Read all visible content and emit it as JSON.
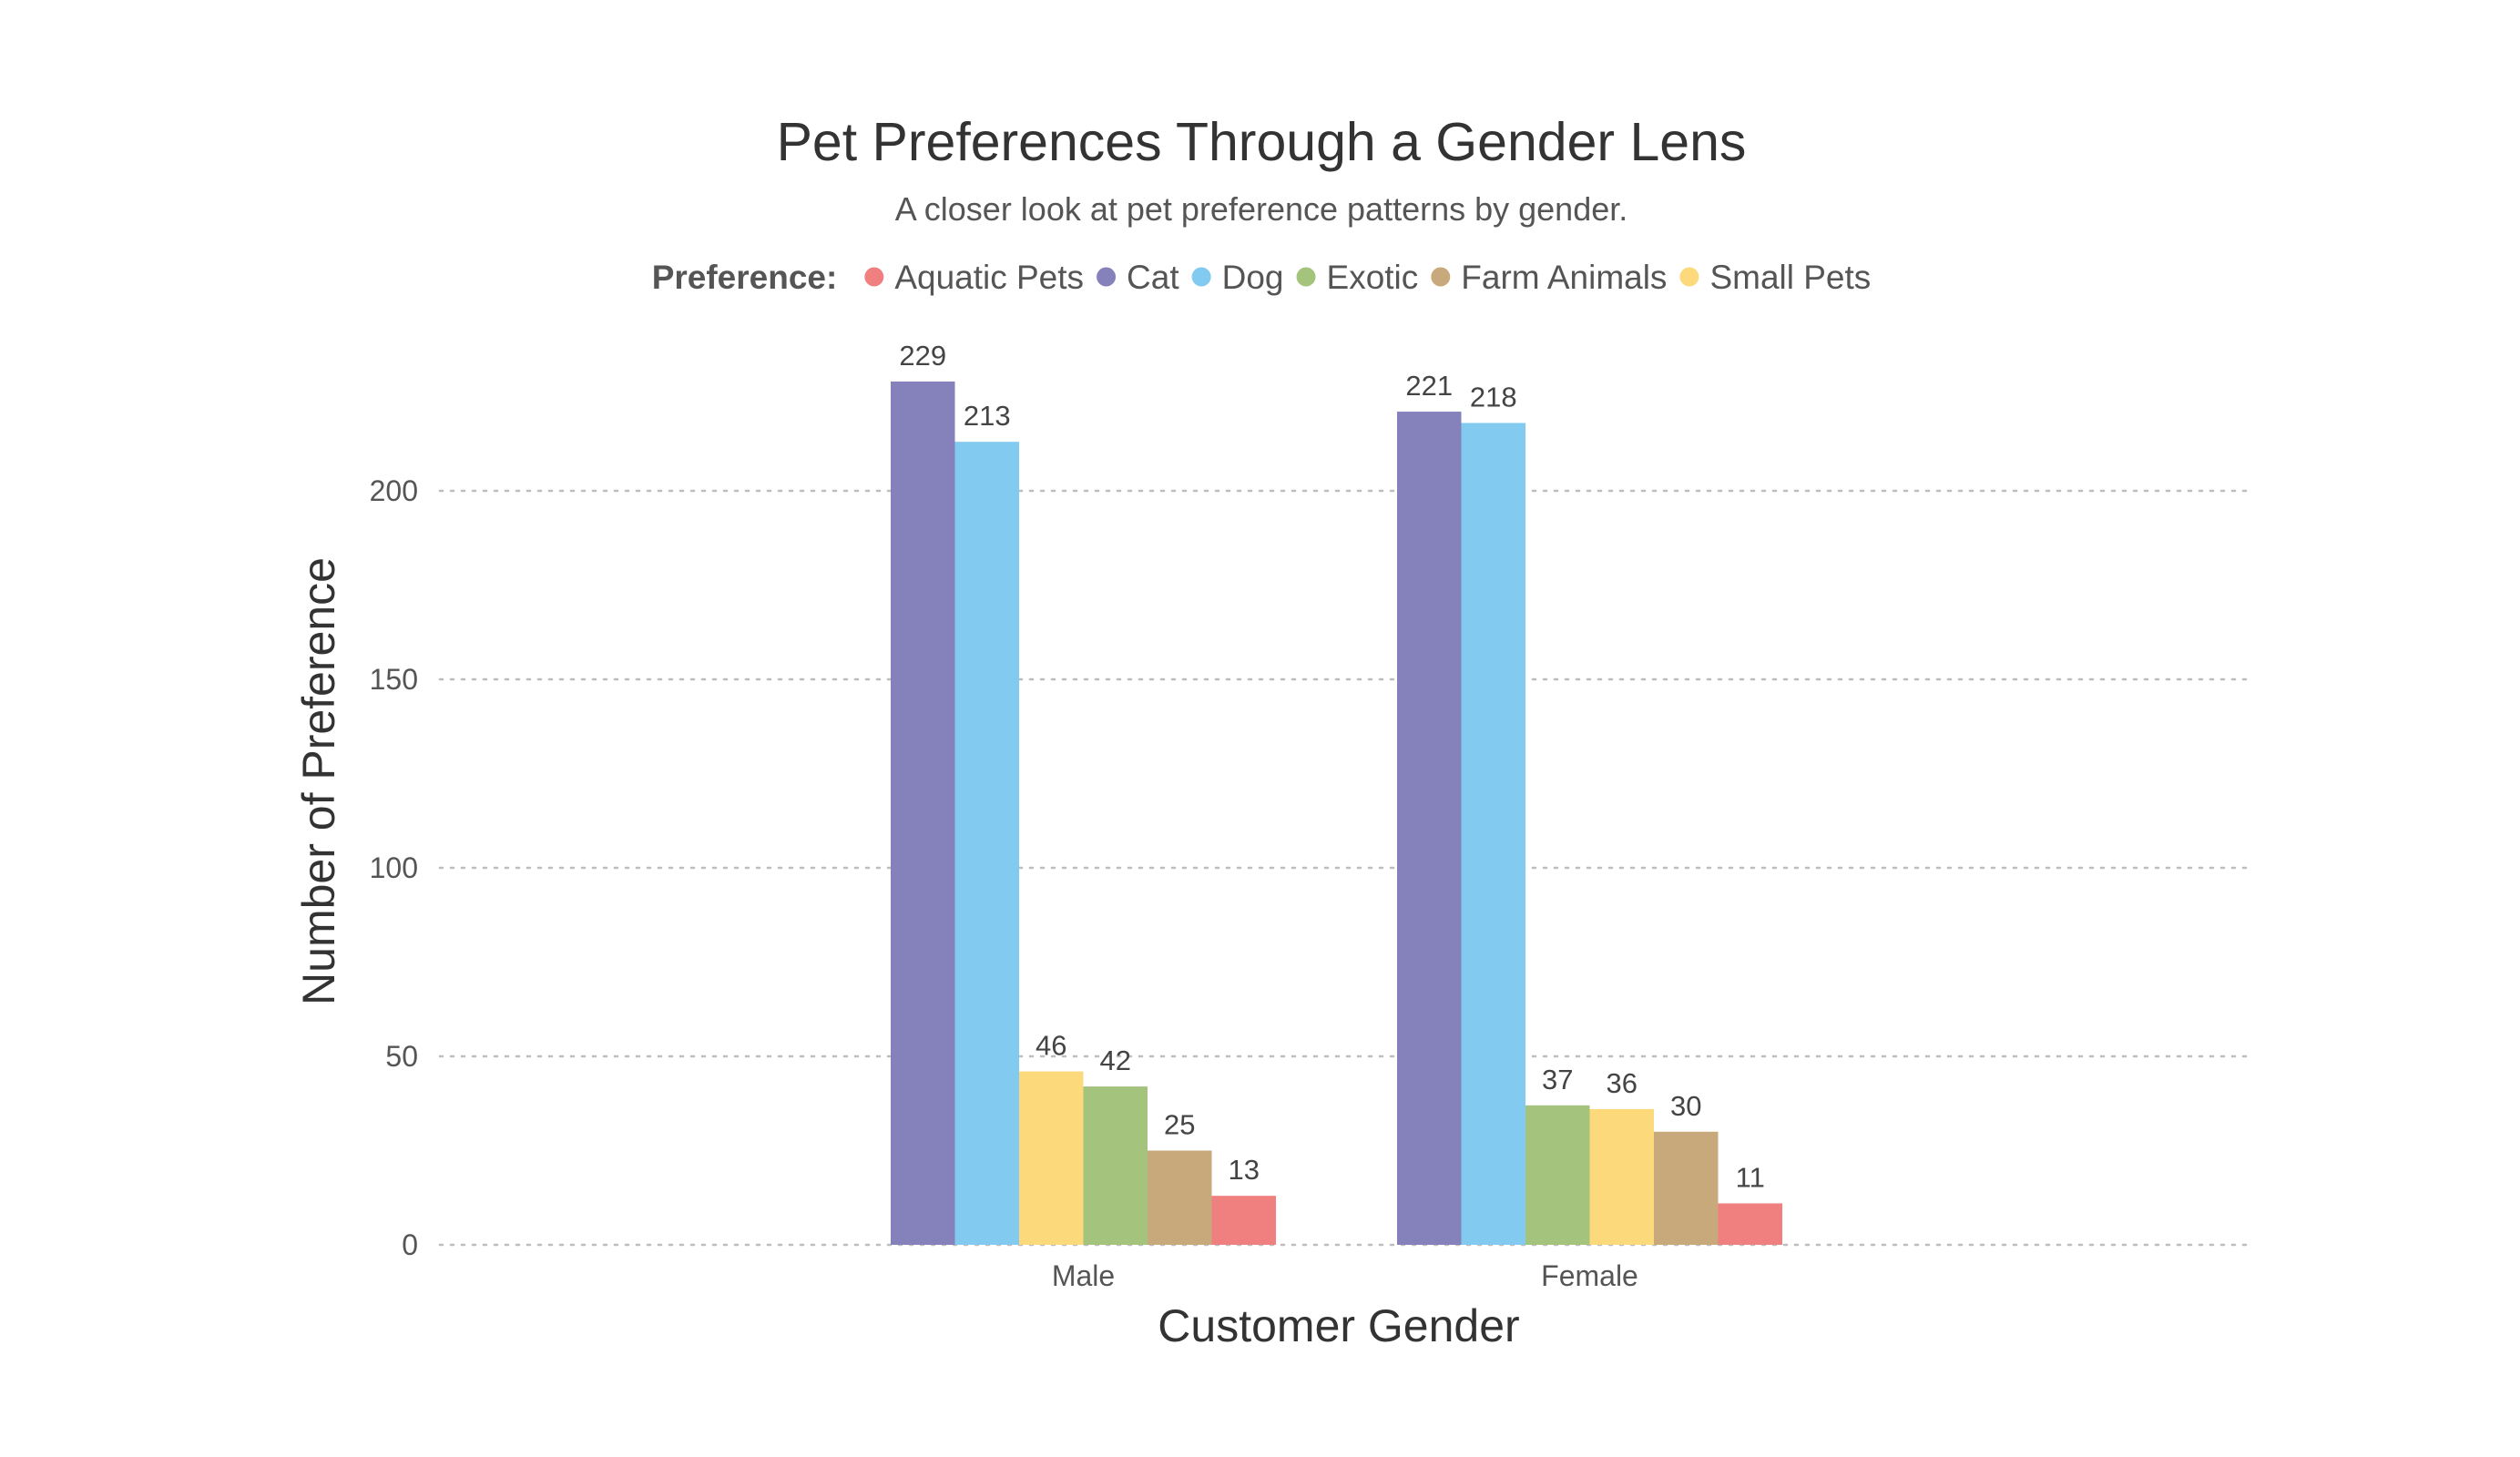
{
  "chart_data": {
    "type": "bar",
    "title": "Pet Preferences Through a Gender Lens",
    "subtitle": "A closer look at pet preference patterns by gender.",
    "xlabel": "Customer Gender",
    "ylabel": "Number of Preference",
    "legend_title": "Preference:",
    "legend_position": "top-center",
    "grid": true,
    "ylim": [
      0,
      240
    ],
    "yticks": [
      0,
      50,
      100,
      150,
      200
    ],
    "categories": [
      "Male",
      "Female"
    ],
    "legend": [
      {
        "name": "Aquatic Pets",
        "color": "#f08080"
      },
      {
        "name": "Cat",
        "color": "#8481bb"
      },
      {
        "name": "Dog",
        "color": "#82caf0"
      },
      {
        "name": "Exotic",
        "color": "#a4c47e"
      },
      {
        "name": "Farm Animals",
        "color": "#c7a97c"
      },
      {
        "name": "Small Pets",
        "color": "#fcd97a"
      }
    ],
    "groups": [
      {
        "category": "Male",
        "bars": [
          {
            "series": "Cat",
            "value": 229
          },
          {
            "series": "Dog",
            "value": 213
          },
          {
            "series": "Small Pets",
            "value": 46
          },
          {
            "series": "Exotic",
            "value": 42
          },
          {
            "series": "Farm Animals",
            "value": 25
          },
          {
            "series": "Aquatic Pets",
            "value": 13
          }
        ]
      },
      {
        "category": "Female",
        "bars": [
          {
            "series": "Cat",
            "value": 221
          },
          {
            "series": "Dog",
            "value": 218
          },
          {
            "series": "Exotic",
            "value": 37
          },
          {
            "series": "Small Pets",
            "value": 36
          },
          {
            "series": "Farm Animals",
            "value": 30
          },
          {
            "series": "Aquatic Pets",
            "value": 11
          }
        ]
      }
    ]
  }
}
